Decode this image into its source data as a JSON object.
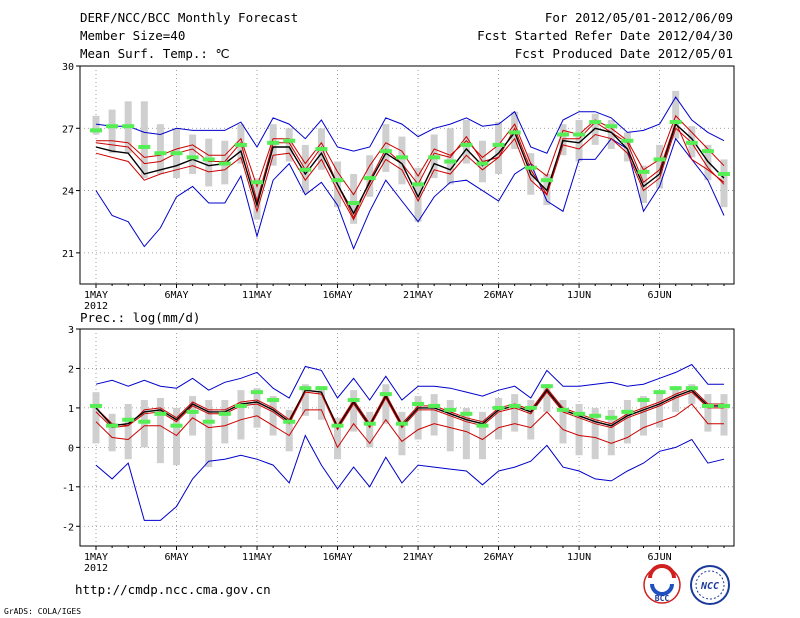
{
  "header": {
    "title": "DERF/NCC/BCC Monthly Forecast",
    "member_size": "Member Size=40",
    "variable": "Mean Surf. Temp.: ℃",
    "period": "For 2012/05/01-2012/06/09",
    "started": "Fcst Started Refer Date 2012/04/30",
    "produced": "Fcst Produced Date 2012/05/01"
  },
  "footer": {
    "url": "http://cmdp.ncc.cma.gov.cn",
    "credit": "GrADS: COLA/IGES",
    "logo_bcc": "BCC",
    "logo_ncc": "NCC"
  },
  "colors": {
    "envelope": "#0000cc",
    "spread": "#cc0000",
    "mean": "#000000",
    "box": "#cfcfcf",
    "marker": "#55ee55",
    "grid": "#888888"
  },
  "chart_data": [
    {
      "type": "line",
      "title": "Mean Surf. Temp.: ℃",
      "ylim": [
        19.5,
        30
      ],
      "yticks": [
        21,
        24,
        27,
        30
      ],
      "xtick_labels": [
        "1MAY\n2012",
        "6MAY",
        "11MAY",
        "16MAY",
        "21MAY",
        "26MAY",
        "1JUN",
        "6JUN"
      ],
      "days": 40,
      "series": [
        {
          "name": "max",
          "values": [
            24,
            22.8,
            22.5,
            21.3,
            22.2,
            23.7,
            24.2,
            23.4,
            23.4,
            24.7,
            21.8,
            24.5,
            25.3,
            23.8,
            24.4,
            23.3,
            21.2,
            23,
            24.5,
            23.5,
            22.5,
            23.7,
            24.4,
            24.5,
            24,
            23.5,
            24.8,
            25.3,
            23.5,
            23,
            25.5,
            25.5,
            26.5,
            26,
            23,
            24.2,
            26.5,
            25.5,
            24.5,
            22.8
          ]
        },
        {
          "name": "p25",
          "values": [
            26.3,
            26.2,
            26.1,
            25.3,
            25.4,
            25.8,
            26,
            25.4,
            25.4,
            26.3,
            23.5,
            26.3,
            26.3,
            25,
            26.1,
            24.3,
            22.7,
            24.5,
            26,
            25.3,
            24.3,
            25.8,
            25.6,
            26.6,
            25.4,
            25.6,
            27,
            25,
            23.8,
            26.5,
            26.5,
            27.3,
            26.8,
            26.3,
            24.4,
            25,
            27.3,
            25.5,
            25,
            24.4
          ]
        },
        {
          "name": "mean",
          "values": [
            26.1,
            25.9,
            25.8,
            24.8,
            25,
            25.2,
            25.5,
            25.2,
            25.3,
            25.9,
            23.3,
            26.1,
            26.1,
            24.8,
            25.8,
            24.3,
            22.9,
            24.4,
            25.8,
            25.3,
            23.7,
            25.3,
            25,
            26,
            25.2,
            25.8,
            26.8,
            24.8,
            24,
            26.4,
            26.3,
            27,
            26.8,
            26,
            24.2,
            24.8,
            27.2,
            26.5,
            25.4,
            24.6
          ]
        },
        {
          "name": "p75",
          "values": [
            25.8,
            25.6,
            25.4,
            24.5,
            24.8,
            25,
            25.2,
            24.9,
            25,
            25.6,
            23,
            25.7,
            25.8,
            24.5,
            25.5,
            24,
            22.6,
            24.2,
            25.5,
            25,
            23.5,
            25,
            24.8,
            25.7,
            25,
            25.6,
            26.5,
            24.5,
            23.8,
            26.2,
            26,
            26.7,
            26.5,
            25.8,
            24,
            24.6,
            27,
            26.3,
            25.1,
            24.3
          ]
        },
        {
          "name": "min",
          "values": [
            26.4,
            26.4,
            26.3,
            25.6,
            25.7,
            26,
            26.2,
            25.7,
            25.7,
            26.5,
            24.2,
            26.5,
            26.5,
            25.3,
            26.3,
            24.9,
            23.8,
            25.2,
            26.3,
            25.9,
            24.7,
            26,
            25.7,
            26.4,
            25.6,
            26.2,
            27.2,
            25.3,
            24.7,
            26.9,
            26.7,
            27.4,
            27,
            26.4,
            25,
            25.5,
            27.6,
            26.8,
            26,
            25.2
          ]
        },
        {
          "name": "envelope-hi",
          "values": [
            27.2,
            27.1,
            27.1,
            26.8,
            26.7,
            27,
            26.9,
            26.9,
            26.9,
            27.3,
            26.1,
            27.5,
            27.2,
            26.5,
            27.4,
            26.1,
            25.9,
            26.1,
            27.5,
            27.2,
            26.6,
            27,
            27.2,
            27.5,
            27.1,
            27.2,
            27.8,
            26.1,
            25.8,
            27.4,
            27.8,
            27.8,
            27.5,
            26.8,
            26.9,
            27.2,
            28.5,
            27.4,
            26.8,
            26.4
          ]
        }
      ],
      "boxes": {
        "top": [
          27.6,
          27.9,
          28.3,
          28.3,
          27.2,
          27,
          26.7,
          26.5,
          26.4,
          27.2,
          24.6,
          27.2,
          27,
          26.2,
          27,
          25.4,
          24.8,
          25.7,
          27.2,
          26.6,
          25.1,
          26.7,
          27,
          27.4,
          26.4,
          27.3,
          27.8,
          25.8,
          24.8,
          27.2,
          27.4,
          27.7,
          27.4,
          26.8,
          25.2,
          26.2,
          28.8,
          27.1,
          26.2,
          25.5
        ],
        "bottom": [
          26.7,
          25.8,
          25.8,
          24.6,
          24.8,
          24.6,
          24.8,
          24.2,
          24.3,
          25.3,
          22.6,
          25.2,
          25.4,
          23.9,
          25,
          23.2,
          22.4,
          23.7,
          24.9,
          24.3,
          22.5,
          24.6,
          24.3,
          25.3,
          24.4,
          24.8,
          26,
          23.8,
          23.3,
          25.7,
          25.4,
          26.2,
          26,
          25.4,
          23.4,
          24.1,
          26.5,
          25.6,
          24.5,
          23.2
        ]
      },
      "markers": [
        26.9,
        27.1,
        27.1,
        26.1,
        25.8,
        25.8,
        25.6,
        25.5,
        25.3,
        26.2,
        24.4,
        26.3,
        26.4,
        25,
        26,
        24.5,
        23.4,
        24.6,
        25.9,
        25.6,
        24.3,
        25.6,
        25.4,
        26.2,
        25.3,
        26.2,
        26.8,
        25.1,
        24.5,
        26.7,
        26.7,
        27.3,
        27.1,
        26.4,
        24.9,
        25.5,
        27.3,
        26.3,
        25.9,
        24.8
      ]
    },
    {
      "type": "line",
      "title": "Prec.: log(mm/d)",
      "ylim": [
        -2.5,
        3
      ],
      "yticks": [
        -2,
        -1,
        0,
        1,
        2,
        3
      ],
      "xtick_labels": [
        "1MAY\n2012",
        "6MAY",
        "11MAY",
        "16MAY",
        "21MAY",
        "26MAY",
        "1JUN",
        "6JUN"
      ],
      "days": 40,
      "series": [
        {
          "name": "envelope-hi",
          "values": [
            1.6,
            1.7,
            1.55,
            1.7,
            1.55,
            1.5,
            1.75,
            1.45,
            1.65,
            1.75,
            1.9,
            1.5,
            1.25,
            2.05,
            1.95,
            1.25,
            1.75,
            1.2,
            1.8,
            1.2,
            1.55,
            1.55,
            1.5,
            1.4,
            1.3,
            1.45,
            1.55,
            1.25,
            1.95,
            1.55,
            1.55,
            1.6,
            1.65,
            1.55,
            1.6,
            1.75,
            1.9,
            2.1,
            1.6,
            1.6
          ]
        },
        {
          "name": "p25",
          "values": [
            1.0,
            0.6,
            0.55,
            0.95,
            1.0,
            0.75,
            1.15,
            0.95,
            0.95,
            1.15,
            1.2,
            1.0,
            0.7,
            1.45,
            1.4,
            0.55,
            1.2,
            0.6,
            1.35,
            0.6,
            1.05,
            1.05,
            0.9,
            0.75,
            0.65,
            1.0,
            1.1,
            0.95,
            1.5,
            1.0,
            0.85,
            0.7,
            0.6,
            0.85,
            1.0,
            1.15,
            1.35,
            1.5,
            1.1,
            1.1
          ]
        },
        {
          "name": "mean",
          "values": [
            1.0,
            0.55,
            0.6,
            0.9,
            0.95,
            0.7,
            1.1,
            0.9,
            0.9,
            1.1,
            1.15,
            0.95,
            0.65,
            1.45,
            1.4,
            0.5,
            1.15,
            0.55,
            1.3,
            0.55,
            1.0,
            1.0,
            0.85,
            0.7,
            0.6,
            0.95,
            1.05,
            0.9,
            1.45,
            0.95,
            0.8,
            0.65,
            0.55,
            0.8,
            0.95,
            1.1,
            1.3,
            1.45,
            1.05,
            1.05
          ]
        },
        {
          "name": "p75",
          "values": [
            0.9,
            0.5,
            0.55,
            0.85,
            0.9,
            0.65,
            1.05,
            0.85,
            0.85,
            1.05,
            1.1,
            0.9,
            0.6,
            1.4,
            1.35,
            0.45,
            1.1,
            0.5,
            1.25,
            0.5,
            0.95,
            0.95,
            0.8,
            0.65,
            0.55,
            0.9,
            1.0,
            0.85,
            1.4,
            0.9,
            0.75,
            0.6,
            0.5,
            0.75,
            0.9,
            1.05,
            1.25,
            1.4,
            1.0,
            1.0
          ]
        },
        {
          "name": "min",
          "values": [
            0.65,
            0.25,
            0.2,
            0.55,
            0.55,
            0.3,
            0.75,
            0.5,
            0.55,
            0.7,
            0.8,
            0.55,
            0.3,
            0.95,
            0.95,
            0.0,
            0.6,
            0.1,
            0.7,
            0.15,
            0.45,
            0.6,
            0.5,
            0.4,
            0.2,
            0.5,
            0.6,
            0.5,
            0.9,
            0.45,
            0.3,
            0.25,
            0.1,
            0.25,
            0.5,
            0.65,
            0.8,
            1.1,
            0.6,
            0.6
          ]
        },
        {
          "name": "envelope-lo",
          "values": [
            -0.45,
            -0.8,
            -0.4,
            -1.85,
            -1.85,
            -1.5,
            -0.8,
            -0.35,
            -0.3,
            -0.2,
            -0.3,
            -0.45,
            -0.9,
            0.3,
            -0.45,
            -1.05,
            -0.5,
            -1.0,
            -0.25,
            -0.9,
            -0.45,
            -0.5,
            -0.55,
            -0.6,
            -0.95,
            -0.6,
            -0.5,
            -0.35,
            0.05,
            -0.5,
            -0.6,
            -0.8,
            -0.85,
            -0.6,
            -0.4,
            -0.1,
            0.0,
            0.2,
            -0.4,
            -0.3
          ]
        }
      ],
      "boxes": {
        "top": [
          1.4,
          0.85,
          1.1,
          1.2,
          1.25,
          1.0,
          1.3,
          1.2,
          1.2,
          1.45,
          1.5,
          1.3,
          0.95,
          1.6,
          1.55,
          0.75,
          1.45,
          0.9,
          1.6,
          0.9,
          1.3,
          1.35,
          1.2,
          1.0,
          0.9,
          1.25,
          1.35,
          1.2,
          1.6,
          1.2,
          1.1,
          1.0,
          0.95,
          1.2,
          1.3,
          1.4,
          1.55,
          1.6,
          1.35,
          1.35
        ],
        "bottom": [
          0.1,
          -0.1,
          -0.3,
          0.0,
          -0.4,
          -0.45,
          0.3,
          -0.5,
          0.1,
          0.2,
          0.5,
          0.3,
          -0.1,
          0.8,
          0.7,
          -0.3,
          0.4,
          0.0,
          0.6,
          -0.2,
          0.2,
          0.3,
          -0.1,
          -0.3,
          -0.3,
          0.2,
          0.4,
          0.2,
          0.9,
          0.1,
          -0.2,
          -0.3,
          -0.2,
          0.1,
          0.3,
          0.5,
          0.9,
          1.1,
          0.4,
          0.3
        ]
      },
      "markers": [
        1.05,
        0.55,
        0.7,
        0.65,
        0.85,
        0.55,
        0.9,
        0.65,
        0.85,
        1.05,
        1.4,
        1.2,
        0.65,
        1.5,
        1.5,
        0.55,
        1.2,
        0.6,
        1.35,
        0.6,
        1.1,
        1.05,
        0.95,
        0.85,
        0.55,
        1.0,
        1.05,
        1.0,
        1.55,
        0.95,
        0.85,
        0.8,
        0.75,
        0.9,
        1.2,
        1.4,
        1.5,
        1.5,
        1.05,
        1.05
      ]
    }
  ]
}
